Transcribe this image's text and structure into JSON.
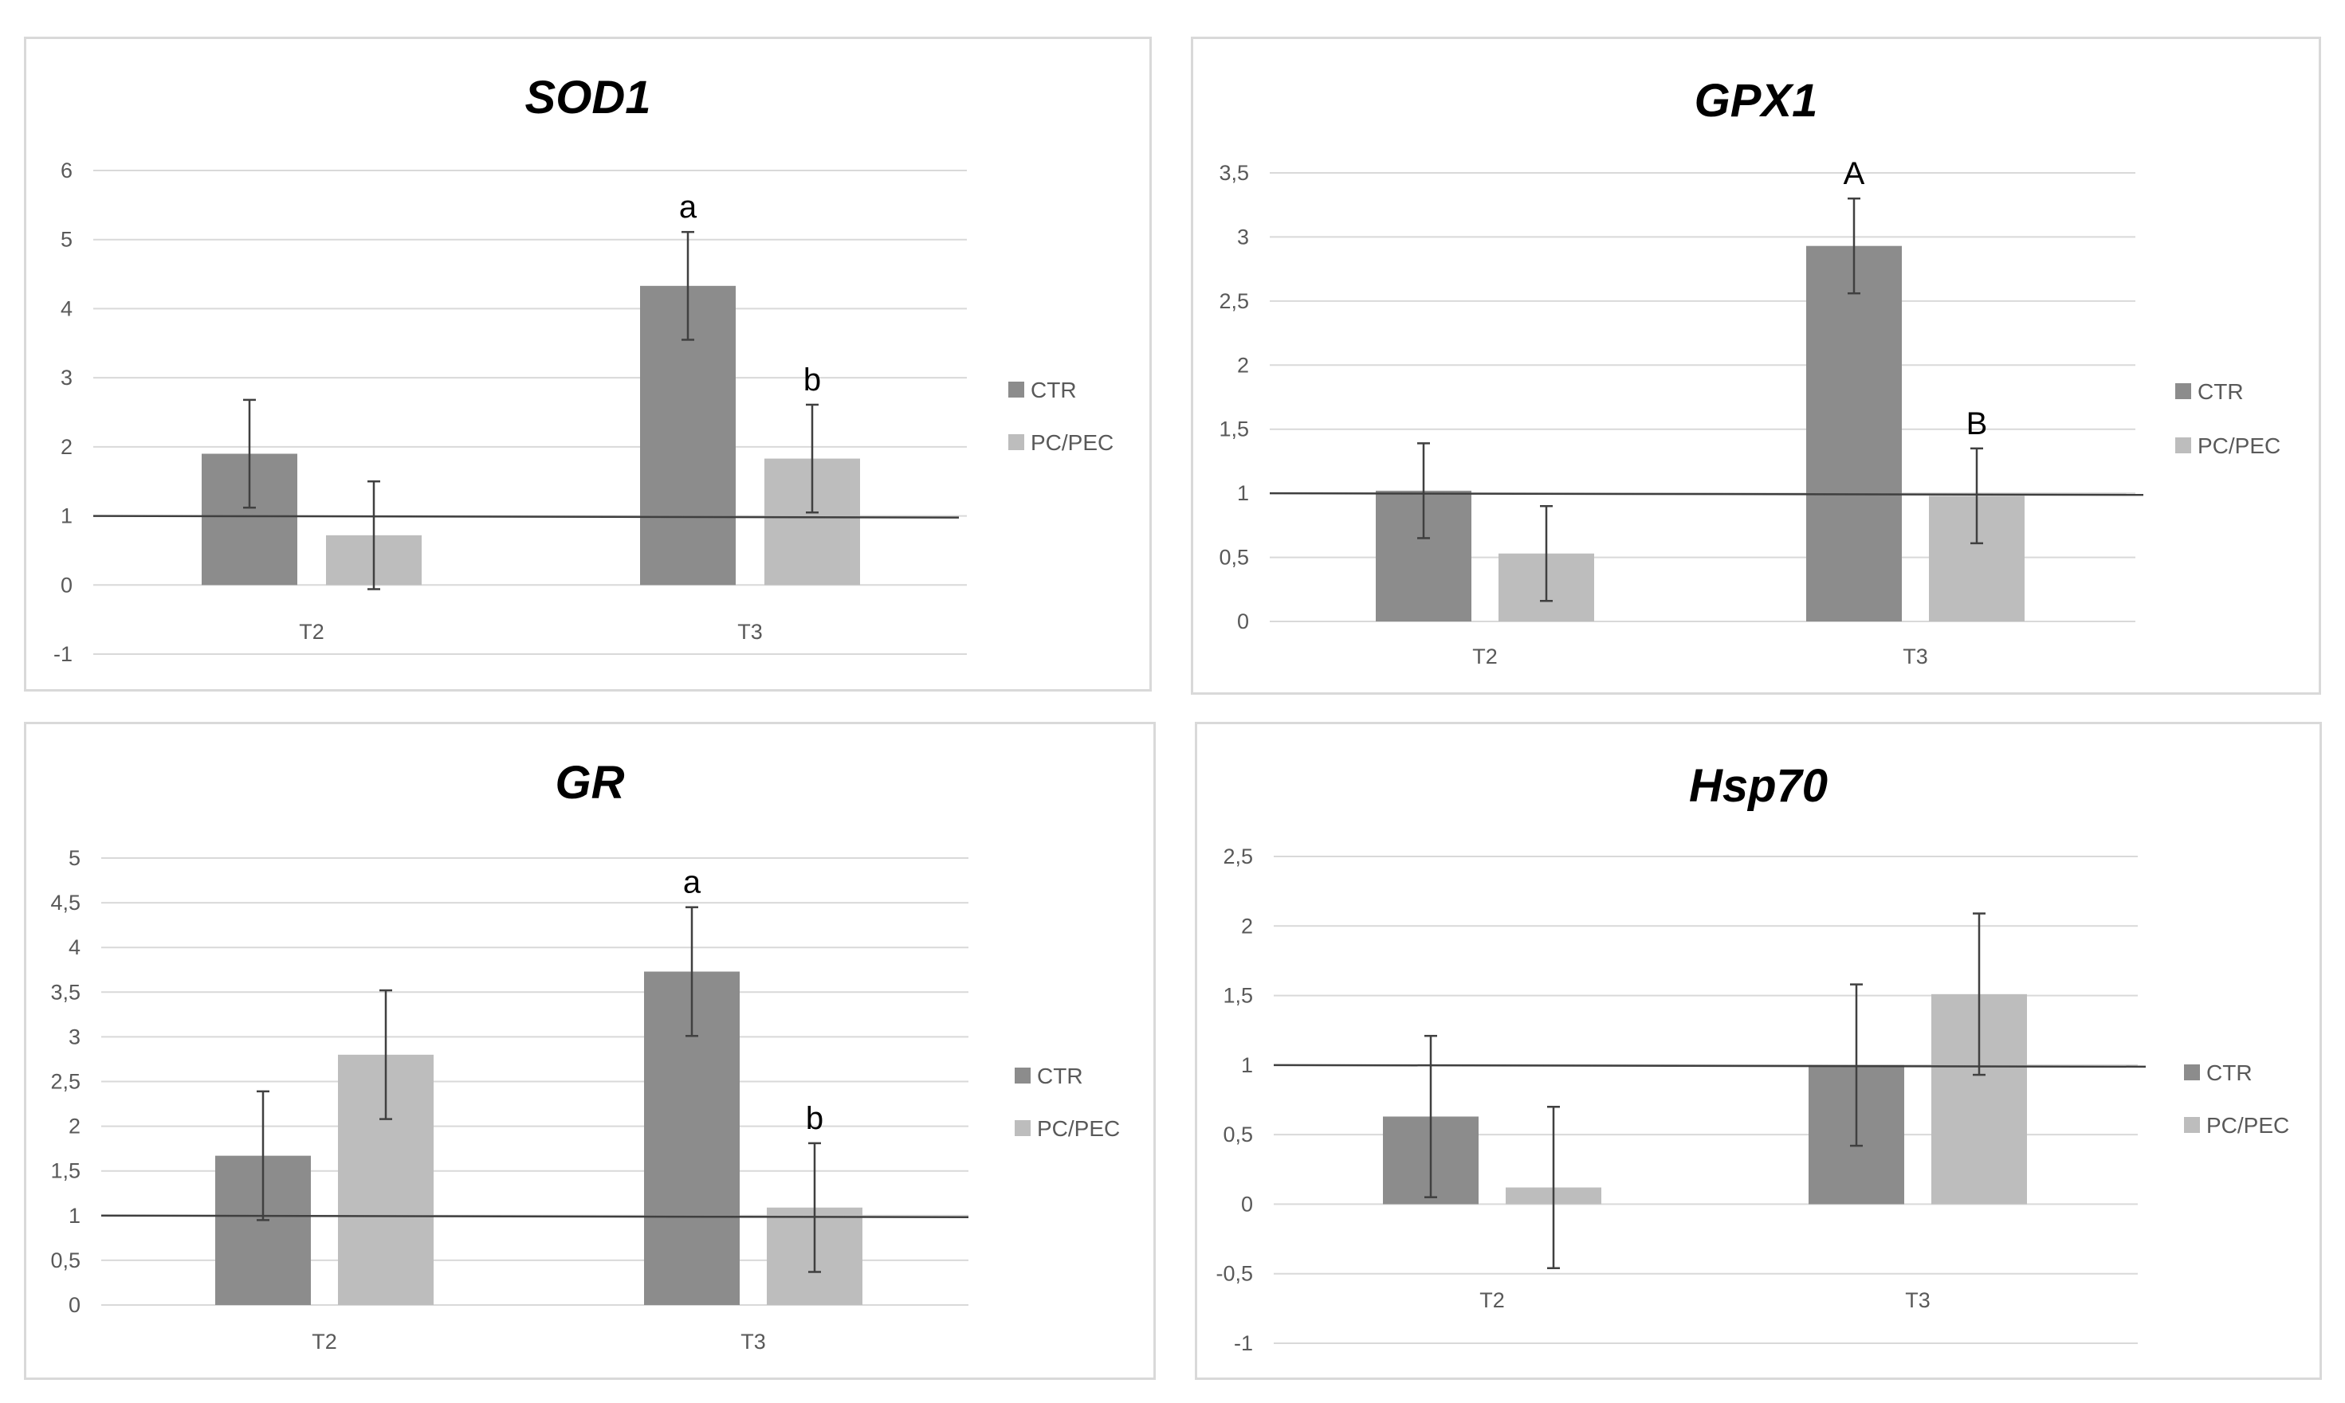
{
  "colors": {
    "ctr": "#8c8c8c",
    "pcpec": "#bdbdbd",
    "grid": "#d9d9d9",
    "axis_text": "#595959",
    "ref_line": "#3f3f3f"
  },
  "legend": [
    "CTR",
    "PC/PEC"
  ],
  "chart_data": [
    {
      "type": "bar",
      "title": "SOD1",
      "categories": [
        "T2",
        "T3"
      ],
      "ylim": [
        -1,
        6
      ],
      "yticks": [
        -1,
        0,
        1,
        2,
        3,
        4,
        5,
        6
      ],
      "ytick_labels": [
        "-1",
        "0",
        "1",
        "2",
        "3",
        "4",
        "5",
        "6"
      ],
      "reference_line": 1,
      "series": [
        {
          "name": "CTR",
          "values": [
            1.9,
            4.33
          ],
          "errors": [
            0.78,
            0.78
          ]
        },
        {
          "name": "PC/PEC",
          "values": [
            0.72,
            1.83
          ],
          "errors": [
            0.78,
            0.78
          ]
        }
      ],
      "annotations": [
        {
          "category": "T3",
          "series": "CTR",
          "text": "a"
        },
        {
          "category": "T3",
          "series": "PC/PEC",
          "text": "b"
        }
      ]
    },
    {
      "type": "bar",
      "title": "GPX1",
      "categories": [
        "T2",
        "T3"
      ],
      "ylim": [
        0,
        3.5
      ],
      "yticks": [
        0,
        0.5,
        1,
        1.5,
        2,
        2.5,
        3,
        3.5
      ],
      "ytick_labels": [
        "0",
        "0,5",
        "1",
        "1,5",
        "2",
        "2,5",
        "3",
        "3,5"
      ],
      "reference_line": 1,
      "series": [
        {
          "name": "CTR",
          "values": [
            1.02,
            2.93
          ],
          "errors": [
            0.37,
            0.37
          ]
        },
        {
          "name": "PC/PEC",
          "values": [
            0.53,
            0.98
          ],
          "errors": [
            0.37,
            0.37
          ]
        }
      ],
      "annotations": [
        {
          "category": "T3",
          "series": "CTR",
          "text": "A"
        },
        {
          "category": "T3",
          "series": "PC/PEC",
          "text": "B"
        }
      ]
    },
    {
      "type": "bar",
      "title": "GR",
      "categories": [
        "T2",
        "T3"
      ],
      "ylim": [
        0,
        5
      ],
      "yticks": [
        0,
        0.5,
        1,
        1.5,
        2,
        2.5,
        3,
        3.5,
        4,
        4.5,
        5
      ],
      "ytick_labels": [
        "0",
        "0,5",
        "1",
        "1,5",
        "2",
        "2,5",
        "3",
        "3,5",
        "4",
        "4,5",
        "5"
      ],
      "reference_line": 1,
      "series": [
        {
          "name": "CTR",
          "values": [
            1.67,
            3.73
          ],
          "errors": [
            0.72,
            0.72
          ]
        },
        {
          "name": "PC/PEC",
          "values": [
            2.8,
            1.09
          ],
          "errors": [
            0.72,
            0.72
          ]
        }
      ],
      "annotations": [
        {
          "category": "T3",
          "series": "CTR",
          "text": "a"
        },
        {
          "category": "T3",
          "series": "PC/PEC",
          "text": "b"
        }
      ]
    },
    {
      "type": "bar",
      "title": "Hsp70",
      "categories": [
        "T2",
        "T3"
      ],
      "ylim": [
        -1,
        2.5
      ],
      "yticks": [
        -1,
        -0.5,
        0,
        0.5,
        1,
        1.5,
        2,
        2.5
      ],
      "ytick_labels": [
        "-1",
        "-0,5",
        "0",
        "0,5",
        "1",
        "1,5",
        "2",
        "2,5"
      ],
      "reference_line": 1,
      "series": [
        {
          "name": "CTR",
          "values": [
            0.63,
            1.0
          ],
          "errors": [
            0.58,
            0.58
          ]
        },
        {
          "name": "PC/PEC",
          "values": [
            0.12,
            1.51
          ],
          "errors": [
            0.58,
            0.58
          ]
        }
      ],
      "annotations": []
    }
  ]
}
